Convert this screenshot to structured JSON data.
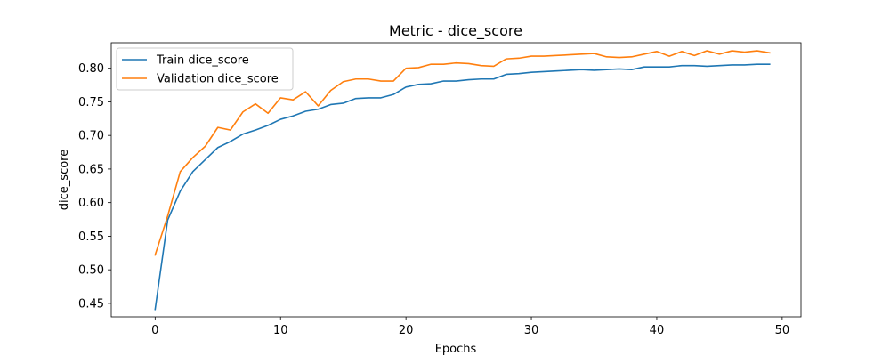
{
  "chart_data": {
    "type": "line",
    "title": "Metric - dice_score",
    "xlabel": "Epochs",
    "ylabel": "dice_score",
    "xlim": [
      -3.5,
      51.5
    ],
    "ylim": [
      0.43,
      0.838
    ],
    "xticks": [
      0,
      10,
      20,
      30,
      40,
      50
    ],
    "yticks": [
      0.45,
      0.5,
      0.55,
      0.6,
      0.65,
      0.7,
      0.75,
      0.8
    ],
    "grid": false,
    "legend_position": "top-left",
    "x": [
      0,
      1,
      2,
      3,
      4,
      5,
      6,
      7,
      8,
      9,
      10,
      11,
      12,
      13,
      14,
      15,
      16,
      17,
      18,
      19,
      20,
      21,
      22,
      23,
      24,
      25,
      26,
      27,
      28,
      29,
      30,
      31,
      32,
      33,
      34,
      35,
      36,
      37,
      38,
      39,
      40,
      41,
      42,
      43,
      44,
      45,
      46,
      47,
      48,
      49
    ],
    "series": [
      {
        "name": "Train dice_score",
        "color": "#1f77b4",
        "values": [
          0.441,
          0.574,
          0.617,
          0.646,
          0.664,
          0.682,
          0.691,
          0.702,
          0.708,
          0.715,
          0.724,
          0.729,
          0.736,
          0.739,
          0.746,
          0.748,
          0.755,
          0.756,
          0.756,
          0.761,
          0.772,
          0.776,
          0.777,
          0.781,
          0.781,
          0.783,
          0.784,
          0.784,
          0.791,
          0.792,
          0.794,
          0.795,
          0.796,
          0.797,
          0.798,
          0.797,
          0.798,
          0.799,
          0.798,
          0.802,
          0.802,
          0.802,
          0.804,
          0.804,
          0.803,
          0.804,
          0.805,
          0.805,
          0.806,
          0.806
        ]
      },
      {
        "name": "Validation dice_score",
        "color": "#ff7f0e",
        "values": [
          0.522,
          0.58,
          0.646,
          0.667,
          0.684,
          0.712,
          0.708,
          0.735,
          0.747,
          0.733,
          0.756,
          0.753,
          0.765,
          0.744,
          0.767,
          0.78,
          0.784,
          0.784,
          0.781,
          0.781,
          0.8,
          0.801,
          0.806,
          0.806,
          0.808,
          0.807,
          0.804,
          0.803,
          0.814,
          0.815,
          0.818,
          0.818,
          0.819,
          0.82,
          0.821,
          0.822,
          0.817,
          0.816,
          0.817,
          0.821,
          0.825,
          0.818,
          0.825,
          0.819,
          0.826,
          0.821,
          0.826,
          0.824,
          0.826,
          0.823
        ]
      }
    ]
  }
}
